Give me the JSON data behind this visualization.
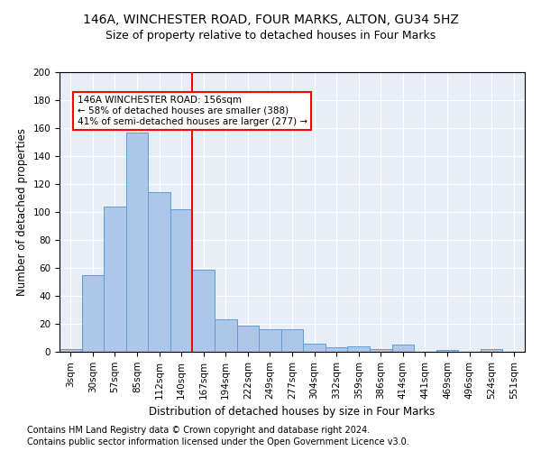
{
  "title1": "146A, WINCHESTER ROAD, FOUR MARKS, ALTON, GU34 5HZ",
  "title2": "Size of property relative to detached houses in Four Marks",
  "xlabel": "Distribution of detached houses by size in Four Marks",
  "ylabel": "Number of detached properties",
  "footnote1": "Contains HM Land Registry data © Crown copyright and database right 2024.",
  "footnote2": "Contains public sector information licensed under the Open Government Licence v3.0.",
  "bar_labels": [
    "3sqm",
    "30sqm",
    "57sqm",
    "85sqm",
    "112sqm",
    "140sqm",
    "167sqm",
    "194sqm",
    "222sqm",
    "249sqm",
    "277sqm",
    "304sqm",
    "332sqm",
    "359sqm",
    "386sqm",
    "414sqm",
    "441sqm",
    "469sqm",
    "496sqm",
    "524sqm",
    "551sqm"
  ],
  "bar_values": [
    2,
    55,
    104,
    157,
    114,
    102,
    59,
    23,
    19,
    16,
    16,
    6,
    3,
    4,
    2,
    5,
    0,
    1,
    0,
    2,
    0
  ],
  "bar_color": "#aec6e8",
  "bar_edge_color": "#5a9fd4",
  "vline_x": 5.5,
  "vline_color": "red",
  "annotation_text": "146A WINCHESTER ROAD: 156sqm\n← 58% of detached houses are smaller (388)\n41% of semi-detached houses are larger (277) →",
  "annotation_box_color": "white",
  "annotation_box_edge": "red",
  "ylim": [
    0,
    200
  ],
  "yticks": [
    0,
    20,
    40,
    60,
    80,
    100,
    120,
    140,
    160,
    180,
    200
  ],
  "background_color": "#e8eef8",
  "grid_color": "white",
  "title1_fontsize": 10,
  "title2_fontsize": 9,
  "xlabel_fontsize": 8.5,
  "ylabel_fontsize": 8.5,
  "footnote_fontsize": 7,
  "tick_fontsize": 7.5,
  "annotation_fontsize": 7.5
}
